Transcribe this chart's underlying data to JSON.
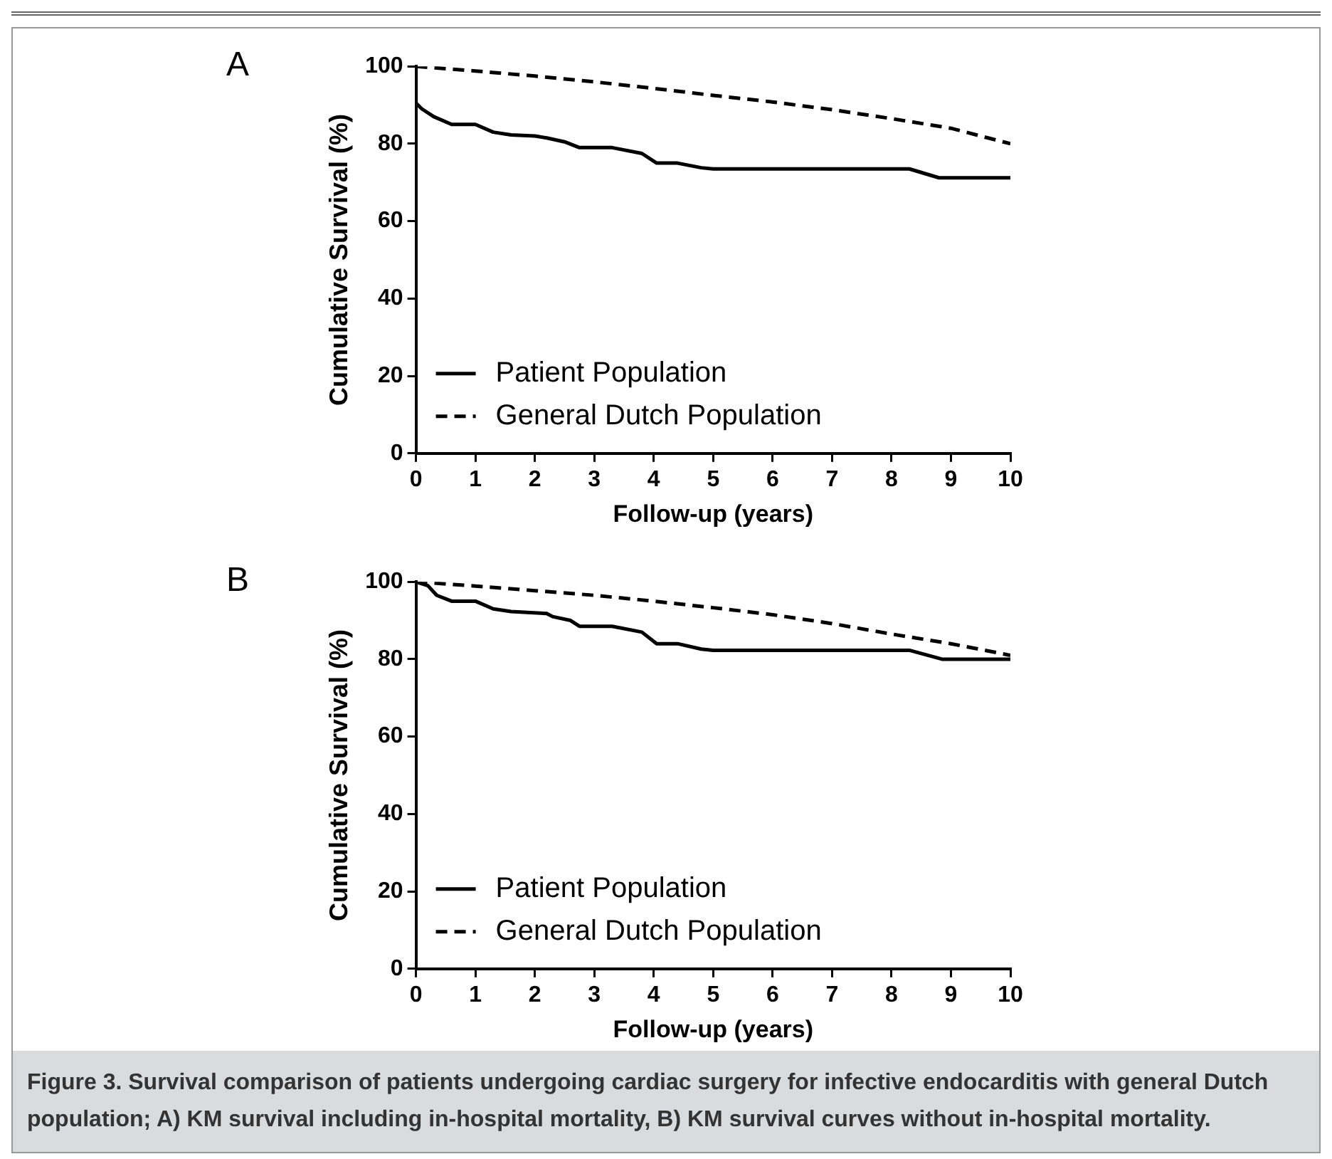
{
  "chart_data": [
    {
      "type": "line",
      "title": "A",
      "xlabel": "Follow-up (years)",
      "ylabel": "Cumulative Survival (%)",
      "xlim": [
        0,
        10
      ],
      "xticks": [
        0,
        1,
        2,
        3,
        4,
        5,
        6,
        7,
        8,
        9,
        10
      ],
      "ylim": [
        0,
        100
      ],
      "yticks": [
        0,
        20,
        40,
        60,
        80,
        100
      ],
      "grid": false,
      "legend": "bottom left",
      "marker": "none",
      "series": [
        {
          "name": "Patient Population",
          "color": "#000000",
          "line_style": "solid",
          "x": [
            0,
            0,
            0.1,
            0.3,
            0.6,
            1.0,
            1.3,
            1.6,
            2.0,
            2.2,
            2.5,
            2.75,
            3.3,
            3.8,
            4.05,
            4.4,
            4.8,
            5.0,
            8.3,
            8.8,
            10
          ],
          "values": [
            100,
            90.5,
            89,
            87,
            85,
            85,
            83,
            82.3,
            82,
            81.5,
            80.5,
            79,
            79,
            77.5,
            75,
            75,
            73.8,
            73.5,
            73.5,
            71.2,
            71.2
          ]
        },
        {
          "name": "General Dutch Population",
          "color": "#000000",
          "line_style": "dashed",
          "x": [
            0,
            1,
            2,
            3,
            4,
            5,
            6,
            7,
            8,
            9,
            10
          ],
          "values": [
            100,
            98.8,
            97.5,
            96,
            94.3,
            92.5,
            90.8,
            88.8,
            86.5,
            84,
            80
          ]
        }
      ]
    },
    {
      "type": "line",
      "title": "B",
      "xlabel": "Follow-up (years)",
      "ylabel": "Cumulative Survival (%)",
      "xlim": [
        0,
        10
      ],
      "xticks": [
        0,
        1,
        2,
        3,
        4,
        5,
        6,
        7,
        8,
        9,
        10
      ],
      "ylim": [
        0,
        100
      ],
      "yticks": [
        0,
        20,
        40,
        60,
        80,
        100
      ],
      "grid": false,
      "legend": "bottom left",
      "marker": "none",
      "annotations": [
        "Figure 3. Survival comparison of patients undergoing cardiac surgery for infective endocarditis with general Dutch population; A) KM survival including in-hospital mortality, B) KM survival curves without in-hospital mortality."
      ],
      "series": [
        {
          "name": "Patient Population",
          "color": "#000000",
          "line_style": "solid",
          "x": [
            0,
            0.2,
            0.35,
            0.6,
            1.0,
            1.3,
            1.6,
            2.2,
            2.3,
            2.6,
            2.75,
            3.3,
            3.8,
            4.05,
            4.4,
            4.8,
            5.0,
            8.3,
            8.85,
            10
          ],
          "values": [
            100,
            99,
            96.5,
            95,
            95,
            93,
            92.3,
            91.8,
            91,
            90,
            88.5,
            88.5,
            87,
            84,
            84,
            82.6,
            82.3,
            82.3,
            80,
            80
          ]
        },
        {
          "name": "General Dutch Population",
          "color": "#000000",
          "line_style": "dashed",
          "x": [
            0,
            1,
            2,
            3,
            4,
            5,
            6,
            7,
            8,
            9,
            10
          ],
          "values": [
            100,
            98.9,
            97.7,
            96.5,
            95,
            93.3,
            91.5,
            89.2,
            86.5,
            84,
            81
          ]
        }
      ]
    }
  ]
}
